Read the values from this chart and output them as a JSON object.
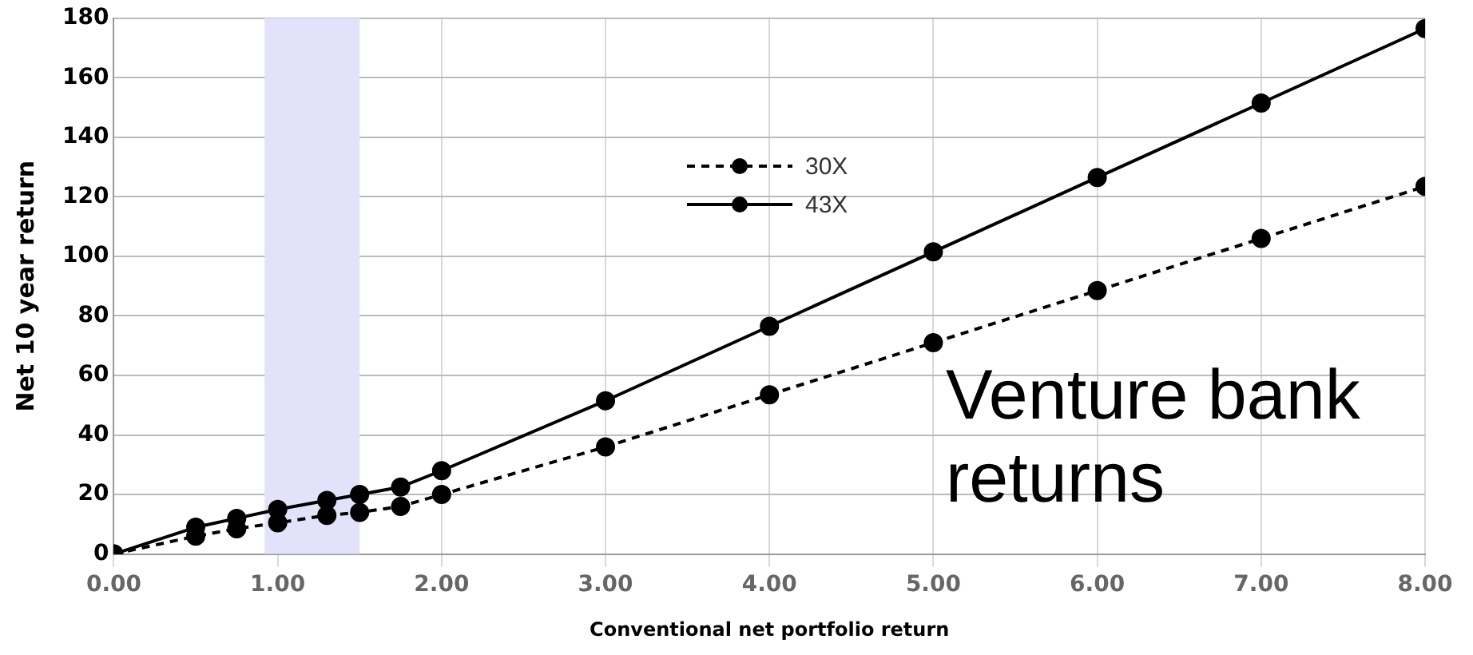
{
  "chart_data": {
    "type": "line",
    "xlabel": "Conventional net portfolio return",
    "ylabel": "Net 10 year return",
    "x": [
      0,
      0.5,
      0.75,
      1.0,
      1.3,
      1.5,
      1.75,
      2,
      3,
      4,
      5,
      6,
      7,
      8
    ],
    "series": [
      {
        "name": "30X",
        "color": "#000000",
        "line_style": "dashed",
        "values": [
          0,
          6,
          8.5,
          10.5,
          13,
          14,
          16,
          20,
          36,
          53.5,
          71,
          88.5,
          106,
          123.5
        ]
      },
      {
        "name": "43X",
        "color": "#000000",
        "line_style": "solid",
        "values": [
          0,
          9,
          12,
          15,
          18,
          20,
          22.5,
          28,
          51.5,
          76.5,
          101.5,
          126.5,
          151.5,
          176.5
        ]
      }
    ],
    "xlim": [
      0,
      8
    ],
    "xticks": [
      {
        "value": 0,
        "label": "0.00"
      },
      {
        "value": 1,
        "label": "1.00"
      },
      {
        "value": 2,
        "label": "2.00"
      },
      {
        "value": 3,
        "label": "3.00"
      },
      {
        "value": 4,
        "label": "4.00"
      },
      {
        "value": 5,
        "label": "5.00"
      },
      {
        "value": 6,
        "label": "6.00"
      },
      {
        "value": 7,
        "label": "7.00"
      },
      {
        "value": 8,
        "label": "8.00"
      }
    ],
    "ylim": [
      0,
      180
    ],
    "yticks": [
      0,
      20,
      40,
      60,
      80,
      100,
      120,
      140,
      160,
      180
    ],
    "bands": [
      {
        "axis": "x",
        "from": 0.92,
        "to": 1.5,
        "color": "#e2e2fa"
      }
    ],
    "annotations": [
      "Venture bank returns"
    ],
    "grid": true,
    "legend": "top",
    "marker": "circle"
  }
}
